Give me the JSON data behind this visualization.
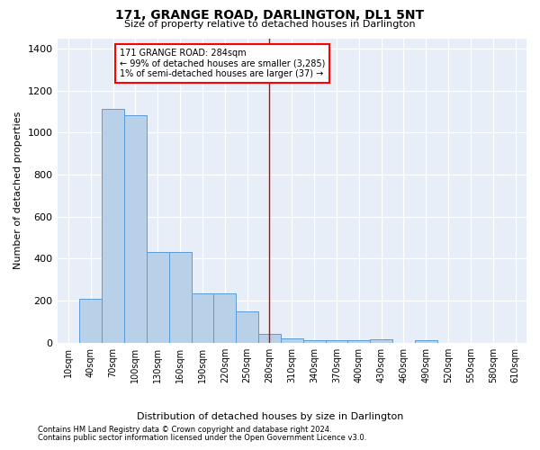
{
  "title": "171, GRANGE ROAD, DARLINGTON, DL1 5NT",
  "subtitle": "Size of property relative to detached houses in Darlington",
  "xlabel": "Distribution of detached houses by size in Darlington",
  "ylabel": "Number of detached properties",
  "footnote1": "Contains HM Land Registry data © Crown copyright and database right 2024.",
  "footnote2": "Contains public sector information licensed under the Open Government Licence v3.0.",
  "bar_color": "#b8d0e8",
  "bar_edge_color": "#5b9bd5",
  "bg_color": "#e8eef8",
  "annotation_label": "171 GRANGE ROAD: 284sqm",
  "annotation_line1": "← 99% of detached houses are smaller (3,285)",
  "annotation_line2": "1% of semi-detached houses are larger (37) →",
  "vline_color": "#cc0000",
  "categories": [
    "10sqm",
    "40sqm",
    "70sqm",
    "100sqm",
    "130sqm",
    "160sqm",
    "190sqm",
    "220sqm",
    "250sqm",
    "280sqm",
    "310sqm",
    "340sqm",
    "370sqm",
    "400sqm",
    "430sqm",
    "460sqm",
    "490sqm",
    "520sqm",
    "550sqm",
    "580sqm",
    "610sqm"
  ],
  "values": [
    0,
    207,
    1112,
    1083,
    430,
    430,
    233,
    233,
    148,
    40,
    20,
    10,
    10,
    10,
    18,
    0,
    11,
    0,
    0,
    0,
    0
  ],
  "ylim": [
    0,
    1450
  ],
  "yticks": [
    0,
    200,
    400,
    600,
    800,
    1000,
    1200,
    1400
  ],
  "vline_idx": 9.0
}
